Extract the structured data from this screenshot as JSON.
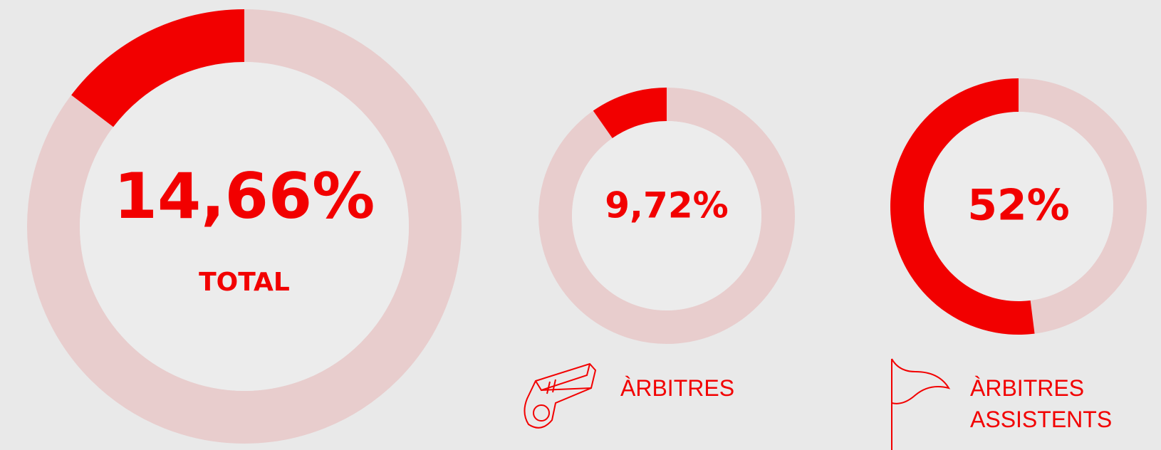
{
  "chart_data": [
    {
      "type": "donut",
      "values": [
        14.66
      ],
      "value_labels": [
        "14,66%"
      ],
      "label": "TOTAL",
      "color": "#f20000",
      "track_color": "#e8cdcd"
    },
    {
      "type": "donut",
      "values": [
        9.72
      ],
      "value_labels": [
        "9,72%"
      ],
      "label": "ÀRBITRES",
      "color": "#f20000",
      "track_color": "#e8cdcd"
    },
    {
      "type": "donut",
      "values": [
        52
      ],
      "value_labels": [
        "52%"
      ],
      "label": "ÀRBITRES ASSISTENTS",
      "color": "#f20000",
      "track_color": "#e8cdcd"
    }
  ]
}
